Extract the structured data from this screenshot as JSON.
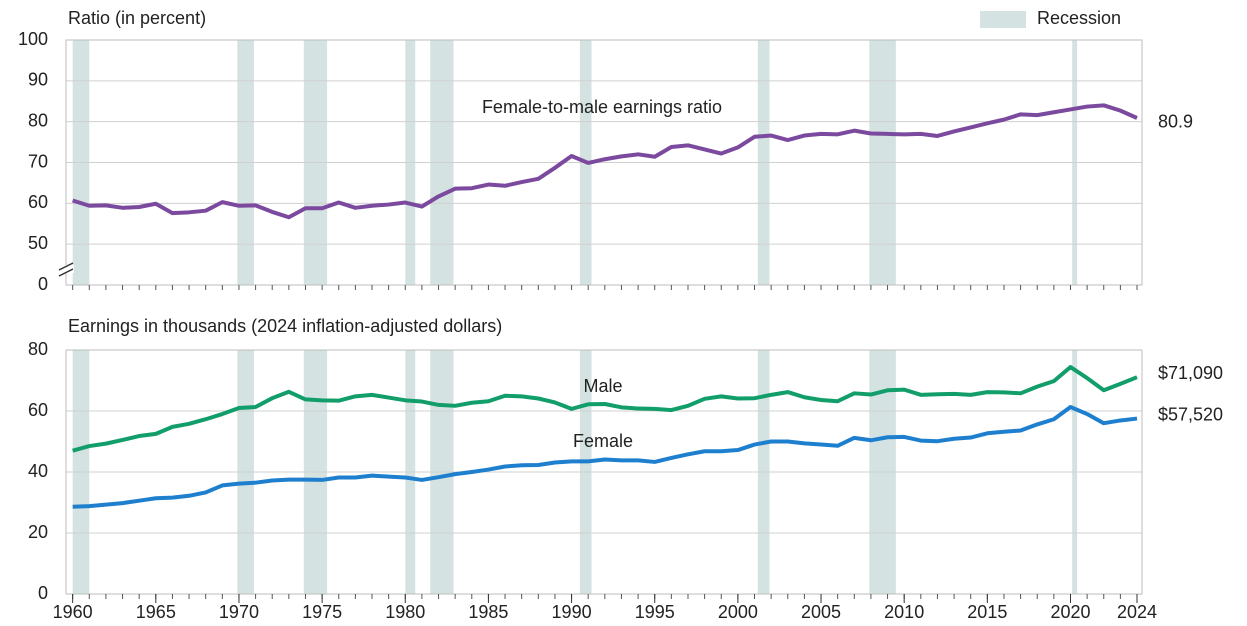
{
  "chart_data": [
    {
      "type": "line",
      "y_label": "Ratio (in percent)",
      "legend_label": "Recession",
      "recession_color": "#d5e2e2",
      "recessions": [
        [
          1960.0,
          1961.0
        ],
        [
          1969.9,
          1970.9
        ],
        [
          1973.9,
          1975.3
        ],
        [
          1980.0,
          1980.6
        ],
        [
          1981.5,
          1982.9
        ],
        [
          1990.5,
          1991.2
        ],
        [
          2001.2,
          2001.9
        ],
        [
          2007.9,
          2009.5
        ],
        [
          2020.1,
          2020.4
        ]
      ],
      "x": [
        1960,
        1961,
        1962,
        1963,
        1964,
        1965,
        1966,
        1967,
        1968,
        1969,
        1970,
        1971,
        1972,
        1973,
        1974,
        1975,
        1976,
        1977,
        1978,
        1979,
        1980,
        1981,
        1982,
        1983,
        1984,
        1985,
        1986,
        1987,
        1988,
        1989,
        1990,
        1991,
        1992,
        1993,
        1994,
        1995,
        1996,
        1997,
        1998,
        1999,
        2000,
        2001,
        2002,
        2003,
        2004,
        2005,
        2006,
        2007,
        2008,
        2009,
        2010,
        2011,
        2012,
        2013,
        2014,
        2015,
        2016,
        2017,
        2018,
        2019,
        2020,
        2021,
        2022,
        2023,
        2024
      ],
      "xlim": [
        1959.6,
        2024.3
      ],
      "ylim": [
        40,
        100
      ],
      "yticks": [
        {
          "value": 0,
          "label": "0"
        },
        50,
        60,
        70,
        80,
        90,
        100
      ],
      "axis_break": true,
      "grid": true,
      "series": [
        {
          "name": "Female-to-male earnings ratio",
          "color": "#7b4a9e",
          "values": [
            60.7,
            59.4,
            59.5,
            58.9,
            59.1,
            59.9,
            57.6,
            57.8,
            58.2,
            60.3,
            59.4,
            59.5,
            57.9,
            56.6,
            58.8,
            58.8,
            60.2,
            58.9,
            59.4,
            59.7,
            60.2,
            59.2,
            61.7,
            63.6,
            63.7,
            64.6,
            64.3,
            65.2,
            66.0,
            68.7,
            71.6,
            69.9,
            70.8,
            71.5,
            72.0,
            71.4,
            73.8,
            74.2,
            73.2,
            72.2,
            73.7,
            76.3,
            76.6,
            75.5,
            76.6,
            77.0,
            76.9,
            77.8,
            77.1,
            77.0,
            76.9,
            77.0,
            76.5,
            77.6,
            78.6,
            79.6,
            80.5,
            81.8,
            81.6,
            82.3,
            83.0,
            83.7,
            84.0,
            82.7,
            80.9
          ]
        }
      ]
    },
    {
      "type": "line",
      "y_label": "Earnings in thousands (2024 inflation-adjusted dollars)",
      "recession_color": "#d5e2e2",
      "recessions": [
        [
          1960.0,
          1961.0
        ],
        [
          1969.9,
          1970.9
        ],
        [
          1973.9,
          1975.3
        ],
        [
          1980.0,
          1980.6
        ],
        [
          1981.5,
          1982.9
        ],
        [
          1990.5,
          1991.2
        ],
        [
          2001.2,
          2001.9
        ],
        [
          2007.9,
          2009.5
        ],
        [
          2020.1,
          2020.4
        ]
      ],
      "x": [
        1960,
        1961,
        1962,
        1963,
        1964,
        1965,
        1966,
        1967,
        1968,
        1969,
        1970,
        1971,
        1972,
        1973,
        1974,
        1975,
        1976,
        1977,
        1978,
        1979,
        1980,
        1981,
        1982,
        1983,
        1984,
        1985,
        1986,
        1987,
        1988,
        1989,
        1990,
        1991,
        1992,
        1993,
        1994,
        1995,
        1996,
        1997,
        1998,
        1999,
        2000,
        2001,
        2002,
        2003,
        2004,
        2005,
        2006,
        2007,
        2008,
        2009,
        2010,
        2011,
        2012,
        2013,
        2014,
        2015,
        2016,
        2017,
        2018,
        2019,
        2020,
        2021,
        2022,
        2023,
        2024
      ],
      "xlim": [
        1959.6,
        2024.3
      ],
      "xticks": [
        1960,
        1965,
        1970,
        1975,
        1980,
        1985,
        1990,
        1995,
        2000,
        2005,
        2010,
        2015,
        2020,
        2024
      ],
      "ylim": [
        0,
        80
      ],
      "yticks": [
        0,
        20,
        40,
        60,
        80
      ],
      "grid": true,
      "series": [
        {
          "name": "Male",
          "color": "#129e6a",
          "end_label": "$71,090",
          "values": [
            47,
            48.5,
            49.3,
            50.5,
            51.8,
            52.5,
            54.8,
            55.8,
            57.3,
            59,
            61,
            61.3,
            64.2,
            66.3,
            63.8,
            63.5,
            63.4,
            64.8,
            65.3,
            64.4,
            63.5,
            63.1,
            62,
            61.7,
            62.7,
            63.2,
            65,
            64.8,
            64.1,
            62.8,
            60.7,
            62.2,
            62.3,
            61.2,
            60.8,
            60.7,
            60.3,
            61.7,
            64,
            64.8,
            64.1,
            64.2,
            65.3,
            66.2,
            64.5,
            63.6,
            63.2,
            65.8,
            65.4,
            66.8,
            67,
            65.3,
            65.5,
            65.6,
            65.3,
            66.2,
            66.1,
            65.8,
            68,
            69.8,
            74.4,
            70.8,
            66.8,
            68.9,
            71.09
          ]
        },
        {
          "name": "Female",
          "color": "#1f7fcf",
          "end_label": "$57,520",
          "values": [
            28.6,
            28.8,
            29.3,
            29.8,
            30.6,
            31.4,
            31.6,
            32.2,
            33.3,
            35.6,
            36.2,
            36.5,
            37.2,
            37.5,
            37.5,
            37.4,
            38.2,
            38.2,
            38.8,
            38.5,
            38.2,
            37.4,
            38.3,
            39.3,
            40,
            40.8,
            41.8,
            42.2,
            42.3,
            43.1,
            43.5,
            43.5,
            44.1,
            43.8,
            43.8,
            43.3,
            44.6,
            45.8,
            46.8,
            46.8,
            47.2,
            49,
            50,
            50,
            49.4,
            49,
            48.6,
            51.2,
            50.4,
            51.4,
            51.5,
            50.3,
            50.1,
            50.9,
            51.3,
            52.7,
            53.2,
            53.6,
            55.6,
            57.3,
            61.3,
            59,
            56,
            56.9,
            57.52
          ]
        }
      ]
    }
  ]
}
